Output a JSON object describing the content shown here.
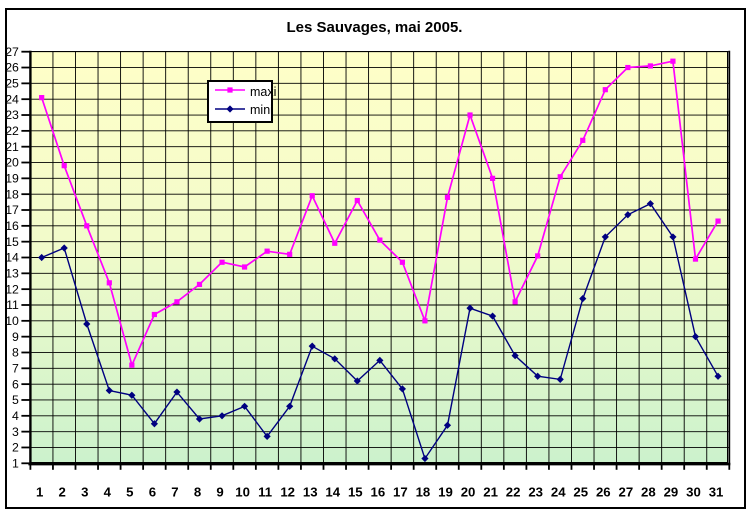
{
  "chart_data": {
    "type": "line",
    "title": "Les Sauvages, mai 2005.",
    "xlabel": "",
    "ylabel": "",
    "x": [
      1,
      2,
      3,
      4,
      5,
      6,
      7,
      8,
      9,
      10,
      11,
      12,
      13,
      14,
      15,
      16,
      17,
      18,
      19,
      20,
      21,
      22,
      23,
      24,
      25,
      26,
      27,
      28,
      29,
      30,
      31
    ],
    "series": [
      {
        "name": "maxi",
        "color": "#FF00FF",
        "marker": "square",
        "values": [
          24.1,
          19.8,
          16.0,
          12.4,
          7.2,
          10.4,
          11.2,
          12.3,
          13.7,
          13.4,
          14.4,
          14.2,
          17.9,
          14.9,
          17.6,
          15.1,
          13.7,
          10.0,
          17.8,
          23.0,
          19.0,
          11.2,
          14.1,
          19.1,
          21.4,
          24.6,
          26.0,
          26.1,
          26.4,
          13.9,
          16.3
        ]
      },
      {
        "name": "mini",
        "color": "#000080",
        "marker": "diamond",
        "values": [
          14.0,
          14.6,
          9.8,
          5.6,
          5.3,
          3.5,
          5.5,
          3.8,
          4.0,
          4.6,
          2.7,
          4.6,
          8.4,
          7.6,
          6.2,
          7.5,
          5.7,
          1.3,
          3.4,
          10.8,
          10.3,
          7.8,
          6.5,
          6.3,
          11.4,
          15.3,
          16.7,
          17.4,
          15.3,
          9.0,
          6.5
        ]
      }
    ],
    "ylim": [
      1,
      27
    ],
    "y_ticks": [
      27,
      26,
      25,
      24,
      23,
      22,
      21,
      20,
      19,
      18,
      17,
      16,
      15,
      14,
      13,
      12,
      11,
      10,
      9,
      8,
      7,
      6,
      5,
      4,
      3,
      2,
      1
    ],
    "grid": true,
    "legend_position": "inner-top-left-of-center",
    "colors": {
      "plot_bg_top": "#FFFFC8",
      "plot_bg_bottom": "#CCF2CC",
      "grid": "#000000",
      "axis": "#000000",
      "outer_frame": "#000000",
      "page_bg": "#FFFFFF",
      "title_text": "#000000",
      "tick_text": "#000000"
    }
  }
}
